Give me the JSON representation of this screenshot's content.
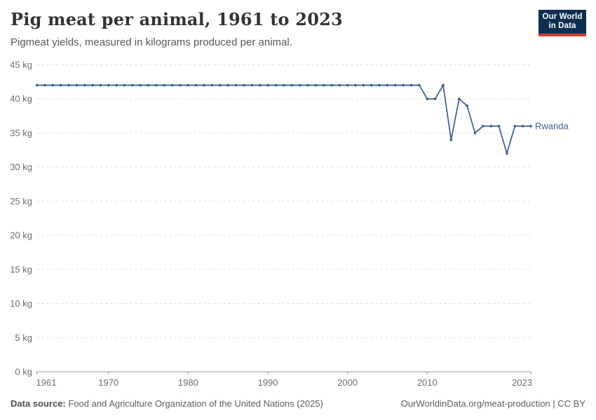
{
  "header": {
    "title": "Pig meat per animal, 1961 to 2023",
    "subtitle": "Pigmeat yields, measured in kilograms produced per animal.",
    "logo": {
      "line1": "Our World",
      "line2": "in Data",
      "bg_color": "#0d2e51",
      "accent_color": "#d73c2f"
    }
  },
  "chart_data": {
    "type": "line",
    "title": "Pig meat per animal, 1961 to 2023",
    "xlabel": "",
    "ylabel": "",
    "xlim": [
      1961,
      2023
    ],
    "ylim": [
      0,
      45
    ],
    "grid": "horizontal-dashed",
    "legend_position": "end-of-line",
    "x_ticks": [
      {
        "value": 1961,
        "label": "1961"
      },
      {
        "value": 1970,
        "label": "1970"
      },
      {
        "value": 1980,
        "label": "1980"
      },
      {
        "value": 1990,
        "label": "1990"
      },
      {
        "value": 2000,
        "label": "2000"
      },
      {
        "value": 2010,
        "label": "2010"
      },
      {
        "value": 2023,
        "label": "2023"
      }
    ],
    "y_ticks": [
      {
        "value": 0,
        "label": "0 kg"
      },
      {
        "value": 5,
        "label": "5 kg"
      },
      {
        "value": 10,
        "label": "10 kg"
      },
      {
        "value": 15,
        "label": "15 kg"
      },
      {
        "value": 20,
        "label": "20 kg"
      },
      {
        "value": 25,
        "label": "25 kg"
      },
      {
        "value": 30,
        "label": "30 kg"
      },
      {
        "value": 35,
        "label": "35 kg"
      },
      {
        "value": 40,
        "label": "40 kg"
      },
      {
        "value": 45,
        "label": "45 kg"
      }
    ],
    "series": [
      {
        "name": "Rwanda",
        "color": "#3d5b96",
        "marker": "circle",
        "x": [
          1961,
          1962,
          1963,
          1964,
          1965,
          1966,
          1967,
          1968,
          1969,
          1970,
          1971,
          1972,
          1973,
          1974,
          1975,
          1976,
          1977,
          1978,
          1979,
          1980,
          1981,
          1982,
          1983,
          1984,
          1985,
          1986,
          1987,
          1988,
          1989,
          1990,
          1991,
          1992,
          1993,
          1994,
          1995,
          1996,
          1997,
          1998,
          1999,
          2000,
          2001,
          2002,
          2003,
          2004,
          2005,
          2006,
          2007,
          2008,
          2009,
          2010,
          2011,
          2012,
          2013,
          2014,
          2015,
          2016,
          2017,
          2018,
          2019,
          2020,
          2021,
          2022,
          2023
        ],
        "values": [
          42,
          42,
          42,
          42,
          42,
          42,
          42,
          42,
          42,
          42,
          42,
          42,
          42,
          42,
          42,
          42,
          42,
          42,
          42,
          42,
          42,
          42,
          42,
          42,
          42,
          42,
          42,
          42,
          42,
          42,
          42,
          42,
          42,
          42,
          42,
          42,
          42,
          42,
          42,
          42,
          42,
          42,
          42,
          42,
          42,
          42,
          42,
          42,
          42,
          40,
          40,
          42,
          34,
          40,
          39,
          35,
          36,
          36,
          36,
          32,
          36,
          36,
          36
        ]
      }
    ],
    "style": {
      "gridline_color": "#dadada",
      "axis_color": "#9e9e9e",
      "tick_label_color": "#6e6e6e"
    }
  },
  "footer": {
    "source_label": "Data source:",
    "source_text": " Food and Agriculture Organization of the United Nations (2025)",
    "attribution": "OurWorldinData.org/meat-production | CC BY"
  }
}
